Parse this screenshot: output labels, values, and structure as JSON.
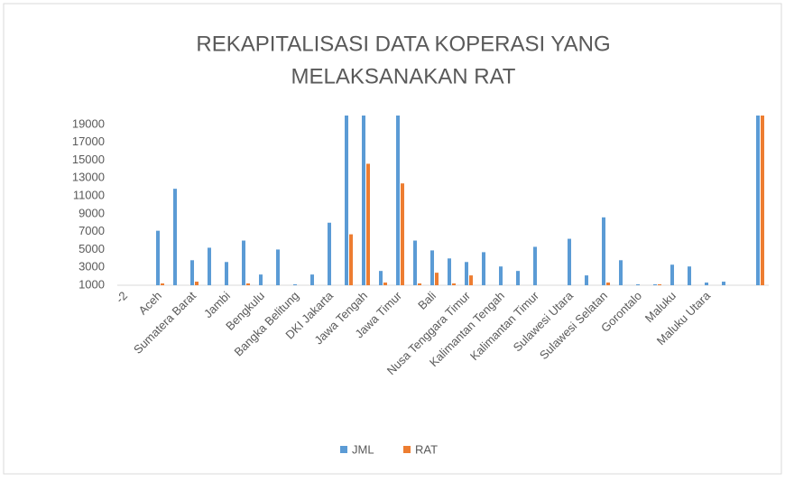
{
  "chart_data": {
    "type": "bar",
    "title": [
      "REKAPITALISASI DATA KOPERASI YANG",
      "MELAKSANAKAN RAT"
    ],
    "categories": [
      "-2",
      null,
      "Aceh",
      null,
      "Sumatera Barat",
      null,
      "Jambi",
      null,
      "Bengkulu",
      null,
      "Bangka Belitung",
      null,
      "DKI Jakarta",
      null,
      "Jawa Tengah",
      null,
      "Jawa Timur",
      null,
      "Bali",
      null,
      "Nusa Tenggara Timur",
      null,
      "Kalimantan Tengah",
      null,
      "Kalimantan Timur",
      null,
      "Sulawesi Utara",
      null,
      "Sulawesi Selatan",
      null,
      "Gorontalo",
      null,
      "Maluku",
      null,
      "Maluku Utara",
      null,
      null,
      null
    ],
    "series": [
      {
        "name": "JML",
        "color": "#5b9bd5",
        "values": [
          null,
          null,
          7100,
          11800,
          3800,
          5200,
          3600,
          6000,
          2200,
          5000,
          1100,
          2200,
          8000,
          20000,
          20000,
          2600,
          20000,
          6000,
          4900,
          4000,
          3600,
          4700,
          3100,
          2600,
          5300,
          null,
          6200,
          2100,
          8600,
          3800,
          1100,
          1100,
          3300,
          3100,
          1300,
          1400,
          null,
          20000
        ]
      },
      {
        "name": "RAT",
        "color": "#ed7d31",
        "values": [
          null,
          null,
          1200,
          null,
          1400,
          null,
          null,
          1200,
          null,
          null,
          null,
          null,
          null,
          6700,
          14600,
          1300,
          12400,
          1200,
          2400,
          1200,
          2100,
          null,
          null,
          null,
          null,
          null,
          null,
          null,
          1300,
          null,
          null,
          1100,
          null,
          null,
          null,
          null,
          null,
          20000
        ]
      }
    ],
    "ylim": [
      1000,
      20000
    ],
    "yticks": [
      1000,
      3000,
      5000,
      7000,
      9000,
      11000,
      13000,
      15000,
      17000,
      19000
    ],
    "legend": "bottom"
  }
}
